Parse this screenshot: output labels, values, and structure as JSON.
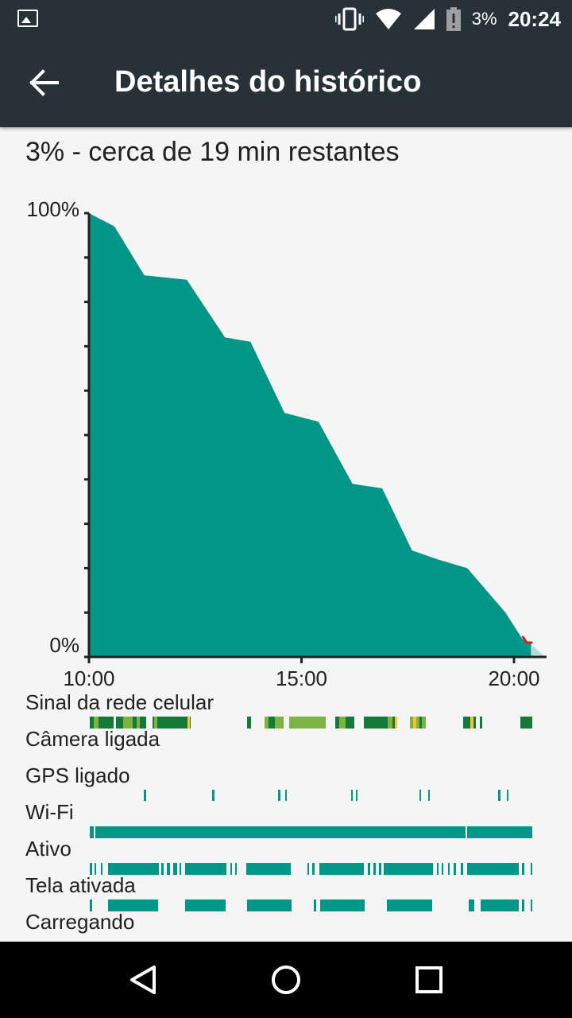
{
  "statusbar": {
    "icons": [
      "image-icon",
      "vibrate-icon",
      "wifi-icon",
      "cell-signal-icon",
      "battery-alert-icon"
    ],
    "battery_percent": "3%",
    "time": "20:24"
  },
  "appbar": {
    "back_icon": "arrow-back-icon",
    "title": "Detalhes do histórico"
  },
  "summary": "3% - cerca de 19 min restantes",
  "chart_data": {
    "type": "area",
    "y_ticks": [
      "100%",
      "0%"
    ],
    "ylim": [
      0,
      100
    ],
    "x_ticks": [
      "10:00",
      "15:00",
      "20:00"
    ],
    "x_hours": [
      10,
      15,
      20
    ],
    "x": [
      10.0,
      10.6,
      11.3,
      12.3,
      13.2,
      13.8,
      14.6,
      15.4,
      16.2,
      16.9,
      17.6,
      18.2,
      18.9,
      19.8,
      20.2,
      20.4
    ],
    "values": [
      100,
      97,
      86,
      85,
      72,
      71,
      55,
      53,
      39,
      38,
      24,
      22,
      20,
      10,
      4,
      3
    ],
    "color": "#009688"
  },
  "rows": [
    {
      "label": "Sinal da rede celular"
    },
    {
      "label": "Câmera ligada"
    },
    {
      "label": "GPS ligado"
    },
    {
      "label": "Wi-Fi"
    },
    {
      "label": "Ativo"
    },
    {
      "label": "Tela ativada"
    },
    {
      "label": "Carregando"
    }
  ],
  "colors": {
    "teal": "#009688",
    "dark_green": "#137a3a",
    "light_green": "#7cb342",
    "yellow": "#fbc02d",
    "bar_bg": "#263238"
  },
  "navbar": {
    "icons": [
      "back-triangle-icon",
      "home-circle-icon",
      "recents-square-icon"
    ]
  }
}
